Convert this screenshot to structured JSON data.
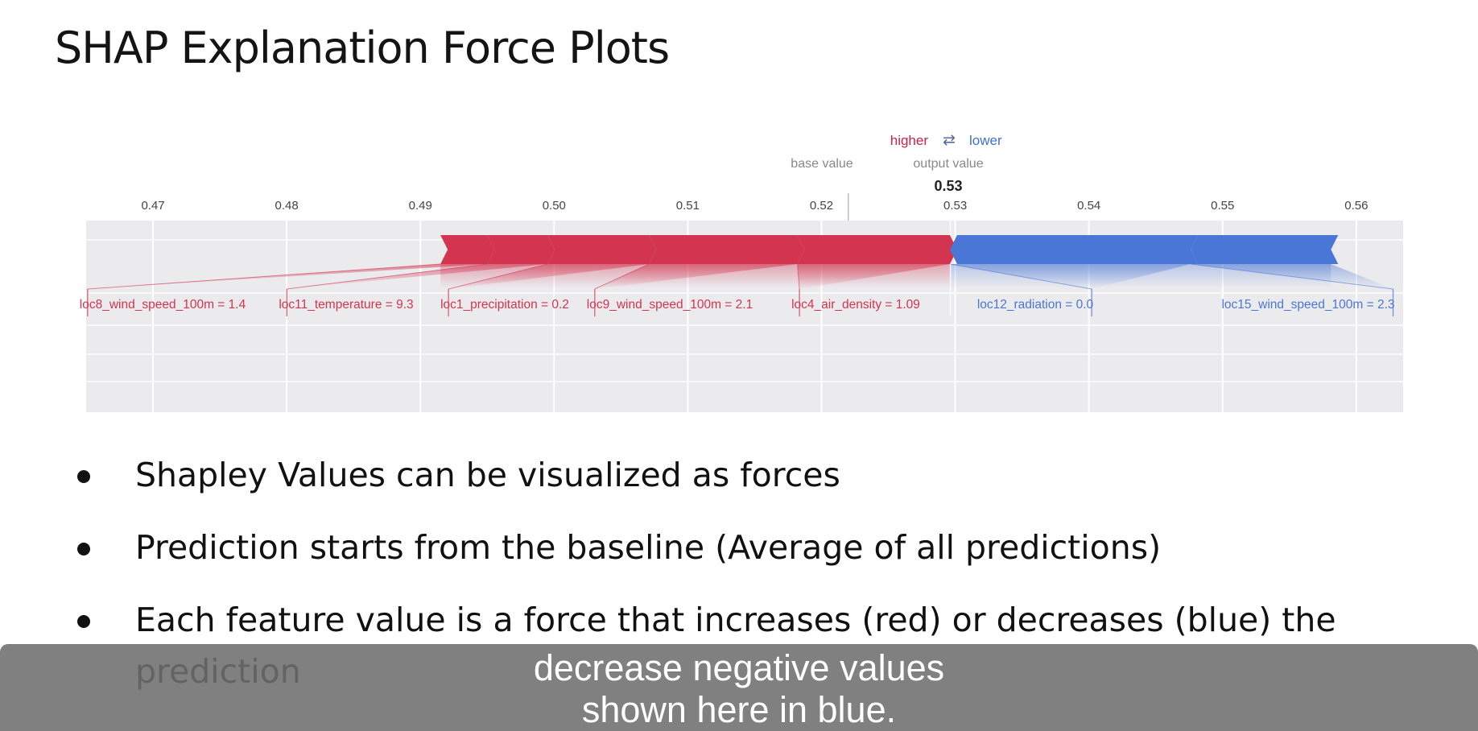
{
  "slide": {
    "title": "SHAP Explanation Force Plots"
  },
  "legend": {
    "higher": "higher",
    "arrows": "⇄",
    "lower": "lower",
    "base_value_label": "base value",
    "output_value_label": "output value"
  },
  "colors": {
    "positive": "#d3344f",
    "negative": "#4a76d6",
    "band": "#ebebee",
    "grid": "#ffffff"
  },
  "chart_data": {
    "type": "force",
    "axis_ticks": [
      0.47,
      0.48,
      0.49,
      0.5,
      0.51,
      0.52,
      0.53,
      0.54,
      0.55,
      0.56
    ],
    "axis_tick_labels": [
      "0.47",
      "0.48",
      "0.49",
      "0.50",
      "0.51",
      "0.52",
      "0.53",
      "0.54",
      "0.55",
      "0.56"
    ],
    "xlim": [
      0.465,
      0.5635
    ],
    "base_value": 0.522,
    "output_value": 0.53,
    "output_value_text": "0.53",
    "positive_features": [
      {
        "label": "loc8_wind_speed_100m = 1.4",
        "start": 0.4915,
        "end": 0.495
      },
      {
        "label": "loc11_temperature = 9.3",
        "start": 0.495,
        "end": 0.4995
      },
      {
        "label": "loc1_precipitation = 0.2",
        "start": 0.4995,
        "end": 0.5071
      },
      {
        "label": "loc9_wind_speed_100m = 2.1",
        "start": 0.5071,
        "end": 0.5182
      },
      {
        "label": "loc4_air_density = 1.09",
        "start": 0.5182,
        "end": 0.5296
      }
    ],
    "negative_features": [
      {
        "label": "loc12_radiation = 0.0",
        "start": 0.5296,
        "end": 0.5476
      },
      {
        "label": "loc15_wind_speed_100m = 2.3",
        "start": 0.5476,
        "end": 0.5581
      }
    ]
  },
  "bullets": [
    {
      "text": "Shapley Values can be visualized as forces"
    },
    {
      "text": "Prediction starts from the baseline (Average of all predictions)"
    },
    {
      "text": "Each feature value is a force that increases (red) or decreases (blue) the prediction"
    }
  ],
  "caption": {
    "line1": "decrease negative values",
    "line2": "shown here in blue."
  }
}
